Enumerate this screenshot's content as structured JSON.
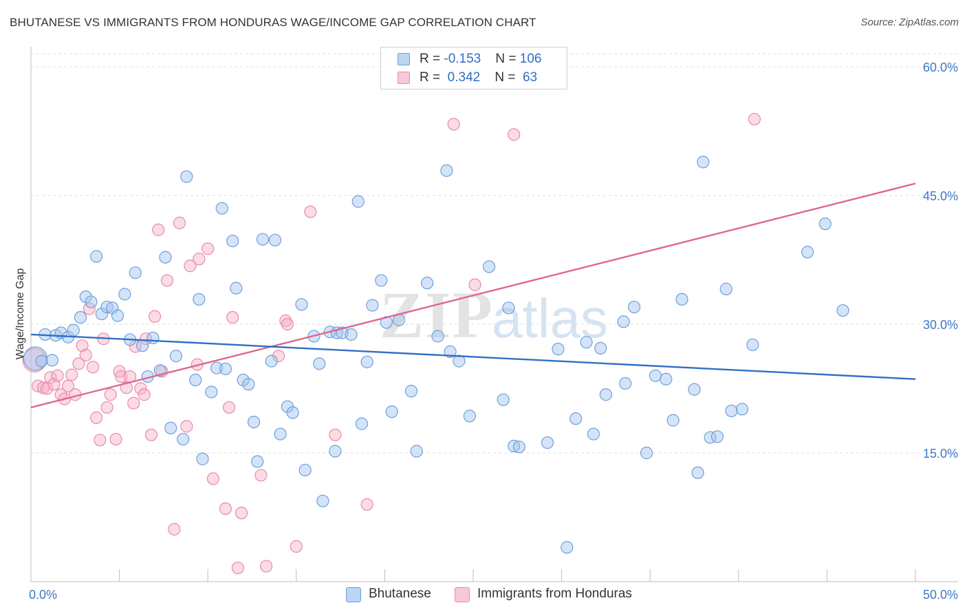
{
  "header": {
    "title": "BHUTANESE VS IMMIGRANTS FROM HONDURAS WAGE/INCOME GAP CORRELATION CHART",
    "source": "Source: ZipAtlas.com"
  },
  "watermark": {
    "zip": "ZIP",
    "atlas": "atlas"
  },
  "legend": {
    "rows": [
      {
        "r_label": "R = ",
        "r_value": "-0.153",
        "n_label": "N = ",
        "n_value": "106"
      },
      {
        "r_label": "R = ",
        "r_value": " 0.342",
        "n_label": "N = ",
        "n_value": " 63"
      }
    ]
  },
  "colors": {
    "blue_fill": "rgba(160,195,240,0.45)",
    "blue_stroke": "#6f9fd8",
    "blue_line": "#2f6fc6",
    "pink_fill": "rgba(245,175,200,0.45)",
    "pink_stroke": "#e98aab",
    "pink_line": "#e06690",
    "grid": "#dcdcdc",
    "axis_label": "#3d78c6"
  },
  "chart_data": {
    "type": "scatter",
    "title": "BHUTANESE VS IMMIGRANTS FROM HONDURAS WAGE/INCOME GAP CORRELATION CHART",
    "xlabel": "",
    "ylabel": "Wage/Income Gap",
    "xlim": [
      0,
      50
    ],
    "ylim": [
      0,
      60
    ],
    "x_tick_labels": [
      "0.0%",
      "50.0%"
    ],
    "y_ticks": [
      15,
      30,
      45,
      60
    ],
    "y_tick_labels": [
      "15.0%",
      "30.0%",
      "45.0%",
      "60.0%"
    ],
    "series": [
      {
        "name": "Bhutanese",
        "r": -0.153,
        "n": 106,
        "trend": {
          "x": [
            0,
            50
          ],
          "y": [
            28.8,
            23.6
          ]
        },
        "points": [
          {
            "x": 0.25,
            "y": 26.0,
            "big": true
          },
          {
            "x": 0.8,
            "y": 28.8
          },
          {
            "x": 1.2,
            "y": 25.8
          },
          {
            "x": 1.4,
            "y": 28.7
          },
          {
            "x": 1.7,
            "y": 29.0
          },
          {
            "x": 2.1,
            "y": 28.5
          },
          {
            "x": 2.4,
            "y": 29.3
          },
          {
            "x": 2.8,
            "y": 30.8
          },
          {
            "x": 3.1,
            "y": 33.2
          },
          {
            "x": 3.4,
            "y": 32.6
          },
          {
            "x": 3.7,
            "y": 37.9
          },
          {
            "x": 4.0,
            "y": 31.2
          },
          {
            "x": 4.3,
            "y": 32.0
          },
          {
            "x": 4.6,
            "y": 31.9
          },
          {
            "x": 4.9,
            "y": 31.0
          },
          {
            "x": 5.3,
            "y": 33.5
          },
          {
            "x": 5.6,
            "y": 28.2
          },
          {
            "x": 5.9,
            "y": 36.0
          },
          {
            "x": 6.3,
            "y": 27.5
          },
          {
            "x": 6.6,
            "y": 23.9
          },
          {
            "x": 6.9,
            "y": 28.4
          },
          {
            "x": 7.3,
            "y": 24.6
          },
          {
            "x": 7.6,
            "y": 37.8
          },
          {
            "x": 7.9,
            "y": 17.9
          },
          {
            "x": 8.2,
            "y": 26.3
          },
          {
            "x": 8.6,
            "y": 16.6
          },
          {
            "x": 8.8,
            "y": 47.2
          },
          {
            "x": 9.3,
            "y": 23.5
          },
          {
            "x": 9.5,
            "y": 32.9
          },
          {
            "x": 9.7,
            "y": 14.3
          },
          {
            "x": 10.2,
            "y": 22.1
          },
          {
            "x": 10.5,
            "y": 24.9
          },
          {
            "x": 10.8,
            "y": 43.5
          },
          {
            "x": 11.0,
            "y": 24.8
          },
          {
            "x": 11.4,
            "y": 39.7
          },
          {
            "x": 11.6,
            "y": 34.2
          },
          {
            "x": 12.0,
            "y": 23.5
          },
          {
            "x": 12.3,
            "y": 23.0
          },
          {
            "x": 12.6,
            "y": 18.6
          },
          {
            "x": 12.8,
            "y": 14.0
          },
          {
            "x": 13.1,
            "y": 39.9
          },
          {
            "x": 13.6,
            "y": 25.7
          },
          {
            "x": 13.8,
            "y": 39.8
          },
          {
            "x": 14.1,
            "y": 17.2
          },
          {
            "x": 14.5,
            "y": 20.4
          },
          {
            "x": 14.8,
            "y": 19.7
          },
          {
            "x": 15.3,
            "y": 32.3
          },
          {
            "x": 15.5,
            "y": 13.0
          },
          {
            "x": 16.0,
            "y": 28.6
          },
          {
            "x": 16.3,
            "y": 25.4
          },
          {
            "x": 16.5,
            "y": 9.4
          },
          {
            "x": 16.9,
            "y": 29.1
          },
          {
            "x": 17.3,
            "y": 29.0
          },
          {
            "x": 17.6,
            "y": 29.0
          },
          {
            "x": 17.2,
            "y": 15.2
          },
          {
            "x": 18.1,
            "y": 28.8
          },
          {
            "x": 18.5,
            "y": 44.3
          },
          {
            "x": 18.7,
            "y": 18.4
          },
          {
            "x": 19.0,
            "y": 25.6
          },
          {
            "x": 19.3,
            "y": 32.2
          },
          {
            "x": 19.8,
            "y": 35.1
          },
          {
            "x": 20.1,
            "y": 30.2
          },
          {
            "x": 20.4,
            "y": 19.8
          },
          {
            "x": 20.8,
            "y": 30.5
          },
          {
            "x": 21.5,
            "y": 22.2
          },
          {
            "x": 21.8,
            "y": 15.2
          },
          {
            "x": 22.4,
            "y": 34.8
          },
          {
            "x": 23.0,
            "y": 28.6
          },
          {
            "x": 23.5,
            "y": 47.9
          },
          {
            "x": 23.7,
            "y": 26.8
          },
          {
            "x": 24.2,
            "y": 25.7
          },
          {
            "x": 24.8,
            "y": 19.3
          },
          {
            "x": 25.9,
            "y": 36.7
          },
          {
            "x": 26.7,
            "y": 21.2
          },
          {
            "x": 27.3,
            "y": 15.8
          },
          {
            "x": 27.6,
            "y": 15.7
          },
          {
            "x": 27.0,
            "y": 31.9
          },
          {
            "x": 29.2,
            "y": 16.2
          },
          {
            "x": 29.8,
            "y": 27.1
          },
          {
            "x": 30.8,
            "y": 19.0
          },
          {
            "x": 31.4,
            "y": 27.9
          },
          {
            "x": 31.8,
            "y": 17.2
          },
          {
            "x": 32.2,
            "y": 27.2
          },
          {
            "x": 32.5,
            "y": 21.8
          },
          {
            "x": 33.5,
            "y": 30.3
          },
          {
            "x": 33.6,
            "y": 23.1
          },
          {
            "x": 34.1,
            "y": 32.0
          },
          {
            "x": 34.8,
            "y": 15.0
          },
          {
            "x": 35.3,
            "y": 24.0
          },
          {
            "x": 35.9,
            "y": 23.6
          },
          {
            "x": 36.3,
            "y": 18.8
          },
          {
            "x": 36.8,
            "y": 32.9
          },
          {
            "x": 37.5,
            "y": 22.4
          },
          {
            "x": 37.7,
            "y": 12.7
          },
          {
            "x": 38.0,
            "y": 48.9
          },
          {
            "x": 38.4,
            "y": 16.8
          },
          {
            "x": 38.8,
            "y": 16.9
          },
          {
            "x": 39.3,
            "y": 34.1
          },
          {
            "x": 39.6,
            "y": 19.9
          },
          {
            "x": 40.2,
            "y": 20.1
          },
          {
            "x": 40.8,
            "y": 27.6
          },
          {
            "x": 30.3,
            "y": 4.0
          },
          {
            "x": 43.9,
            "y": 38.4
          },
          {
            "x": 44.9,
            "y": 41.7
          },
          {
            "x": 45.9,
            "y": 31.6
          },
          {
            "x": 0.6,
            "y": 25.7
          }
        ]
      },
      {
        "name": "Immigrants from Honduras",
        "r": 0.342,
        "n": 63,
        "trend": {
          "x": [
            0,
            50
          ],
          "y": [
            20.3,
            46.4
          ]
        },
        "points": [
          {
            "x": 0.2,
            "y": 25.8,
            "big": true
          },
          {
            "x": 0.4,
            "y": 22.8
          },
          {
            "x": 0.7,
            "y": 22.6
          },
          {
            "x": 0.9,
            "y": 22.5
          },
          {
            "x": 1.1,
            "y": 23.8
          },
          {
            "x": 1.3,
            "y": 23.0
          },
          {
            "x": 1.5,
            "y": 24.0
          },
          {
            "x": 1.7,
            "y": 21.8
          },
          {
            "x": 1.9,
            "y": 21.3
          },
          {
            "x": 2.1,
            "y": 22.8
          },
          {
            "x": 2.3,
            "y": 24.1
          },
          {
            "x": 2.5,
            "y": 21.8
          },
          {
            "x": 2.7,
            "y": 25.4
          },
          {
            "x": 2.9,
            "y": 27.5
          },
          {
            "x": 3.1,
            "y": 26.4
          },
          {
            "x": 3.3,
            "y": 31.8
          },
          {
            "x": 3.5,
            "y": 25.0
          },
          {
            "x": 3.7,
            "y": 19.1
          },
          {
            "x": 3.9,
            "y": 16.5
          },
          {
            "x": 4.1,
            "y": 28.3
          },
          {
            "x": 4.3,
            "y": 20.3
          },
          {
            "x": 4.5,
            "y": 21.8
          },
          {
            "x": 4.8,
            "y": 16.6
          },
          {
            "x": 5.0,
            "y": 24.5
          },
          {
            "x": 5.1,
            "y": 23.9
          },
          {
            "x": 5.4,
            "y": 22.6
          },
          {
            "x": 5.6,
            "y": 23.9
          },
          {
            "x": 5.8,
            "y": 20.8
          },
          {
            "x": 5.9,
            "y": 27.4
          },
          {
            "x": 6.2,
            "y": 22.5
          },
          {
            "x": 6.4,
            "y": 21.8
          },
          {
            "x": 6.5,
            "y": 28.3
          },
          {
            "x": 6.8,
            "y": 17.1
          },
          {
            "x": 7.0,
            "y": 30.9
          },
          {
            "x": 7.2,
            "y": 41.0
          },
          {
            "x": 7.4,
            "y": 24.5
          },
          {
            "x": 7.7,
            "y": 35.1
          },
          {
            "x": 8.1,
            "y": 6.1
          },
          {
            "x": 8.4,
            "y": 41.8
          },
          {
            "x": 8.8,
            "y": 18.1
          },
          {
            "x": 9.0,
            "y": 36.8
          },
          {
            "x": 9.4,
            "y": 25.3
          },
          {
            "x": 9.5,
            "y": 37.6
          },
          {
            "x": 10.0,
            "y": 38.8
          },
          {
            "x": 10.3,
            "y": 12.0
          },
          {
            "x": 11.0,
            "y": 8.5
          },
          {
            "x": 11.2,
            "y": 20.3
          },
          {
            "x": 11.4,
            "y": 30.8
          },
          {
            "x": 11.7,
            "y": 1.6
          },
          {
            "x": 11.9,
            "y": 8.0
          },
          {
            "x": 13.0,
            "y": 12.4
          },
          {
            "x": 13.3,
            "y": 1.8
          },
          {
            "x": 14.0,
            "y": 26.3
          },
          {
            "x": 14.4,
            "y": 30.4
          },
          {
            "x": 14.5,
            "y": 30.0
          },
          {
            "x": 15.0,
            "y": 4.1
          },
          {
            "x": 15.8,
            "y": 43.1
          },
          {
            "x": 17.2,
            "y": 17.1
          },
          {
            "x": 19.0,
            "y": 9.0
          },
          {
            "x": 23.9,
            "y": 53.3
          },
          {
            "x": 25.1,
            "y": 34.6
          },
          {
            "x": 27.3,
            "y": 52.1
          },
          {
            "x": 40.9,
            "y": 53.9
          }
        ]
      }
    ]
  },
  "bottom_legend": {
    "items": [
      {
        "label": "Bhutanese"
      },
      {
        "label": "Immigrants from Honduras"
      }
    ]
  }
}
